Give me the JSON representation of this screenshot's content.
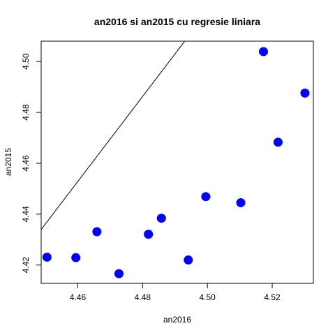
{
  "chart_data": {
    "type": "scatter",
    "title": "an2016 si an2015 cu regresie liniara",
    "xlabel": "an2016",
    "ylabel": "an2015",
    "xlim": [
      4.4487,
      4.5327
    ],
    "ylim": [
      4.4128,
      4.508
    ],
    "x_ticks": [
      4.46,
      4.48,
      4.5,
      4.52
    ],
    "x_tick_labels": [
      "4.46",
      "4.48",
      "4.50",
      "4.52"
    ],
    "y_ticks": [
      4.42,
      4.44,
      4.46,
      4.48,
      4.5
    ],
    "y_tick_labels": [
      "4.42",
      "4.44",
      "4.46",
      "4.48",
      "4.50"
    ],
    "grid": false,
    "point_color": "#0000ff",
    "line_color": "#000000",
    "points": [
      {
        "x": 4.4505,
        "y": 4.4231
      },
      {
        "x": 4.4594,
        "y": 4.4229
      },
      {
        "x": 4.4659,
        "y": 4.4331
      },
      {
        "x": 4.4727,
        "y": 4.4166
      },
      {
        "x": 4.4818,
        "y": 4.4321
      },
      {
        "x": 4.4858,
        "y": 4.4384
      },
      {
        "x": 4.4941,
        "y": 4.422
      },
      {
        "x": 4.4995,
        "y": 4.4469
      },
      {
        "x": 4.5103,
        "y": 4.4445
      },
      {
        "x": 4.5173,
        "y": 4.5039
      },
      {
        "x": 4.5218,
        "y": 4.4683
      },
      {
        "x": 4.5301,
        "y": 4.4876
      }
    ],
    "regression_line": {
      "intercept": -3.0016,
      "slope": 1.6714
    }
  }
}
